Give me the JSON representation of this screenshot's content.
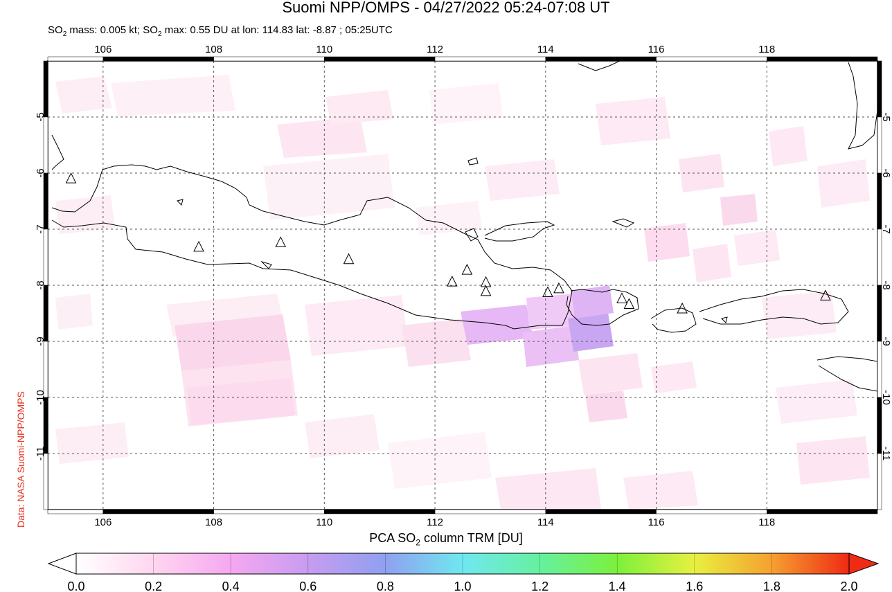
{
  "title": "Suomi NPP/OMPS - 04/27/2022 05:24-07:08 UT",
  "subtitle_parts": {
    "a": "SO",
    "a_sub": "2",
    "b": " mass: 0.005 kt; SO",
    "b_sub": "2",
    "c": " max: 0.55 DU at lon: 114.83 lat: -8.87 ; 05:25UTC"
  },
  "credit": "Data: NASA Suomi-NPP/OMPS",
  "colorbar": {
    "label_pre": "PCA SO",
    "label_sub": "2",
    "label_post": " column TRM [DU]",
    "ticks": [
      "0.0",
      "0.2",
      "0.4",
      "0.6",
      "0.8",
      "1.0",
      "1.2",
      "1.4",
      "1.6",
      "1.8",
      "2.0"
    ],
    "colors": [
      "#ffffff",
      "#ffd6ef",
      "#f5a8f0",
      "#c79cf0",
      "#8fa0f0",
      "#6fe8f0",
      "#66f0a0",
      "#7cf03c",
      "#e8f040",
      "#f5a030",
      "#f02a14"
    ]
  },
  "map": {
    "lon_ticks": [
      "106",
      "108",
      "110",
      "112",
      "114",
      "116",
      "118"
    ],
    "lon_values": [
      106,
      108,
      110,
      112,
      114,
      116,
      118
    ],
    "lat_ticks": [
      "-5",
      "-6",
      "-7",
      "-8",
      "-9",
      "-10",
      "-11"
    ],
    "lat_values": [
      -5,
      -6,
      -7,
      -8,
      -9,
      -10,
      -11
    ],
    "lon_range": [
      105.0,
      120.0
    ],
    "lat_range": [
      -12.0,
      -4.0
    ],
    "volcano_markers": [
      {
        "lon": 105.42,
        "lat": -6.1
      },
      {
        "lon": 107.73,
        "lat": -7.32
      },
      {
        "lon": 109.21,
        "lat": -7.24
      },
      {
        "lon": 110.44,
        "lat": -7.54
      },
      {
        "lon": 112.31,
        "lat": -7.94
      },
      {
        "lon": 112.58,
        "lat": -7.73
      },
      {
        "lon": 112.92,
        "lat": -7.95
      },
      {
        "lon": 112.92,
        "lat": -8.11
      },
      {
        "lon": 114.04,
        "lat": -8.13
      },
      {
        "lon": 114.24,
        "lat": -8.06
      },
      {
        "lon": 115.38,
        "lat": -8.24
      },
      {
        "lon": 115.51,
        "lat": -8.34
      },
      {
        "lon": 116.47,
        "lat": -8.42
      },
      {
        "lon": 119.06,
        "lat": -8.19
      }
    ],
    "so2_max": {
      "lon": 114.83,
      "lat": -8.87,
      "value": 0.55
    }
  }
}
